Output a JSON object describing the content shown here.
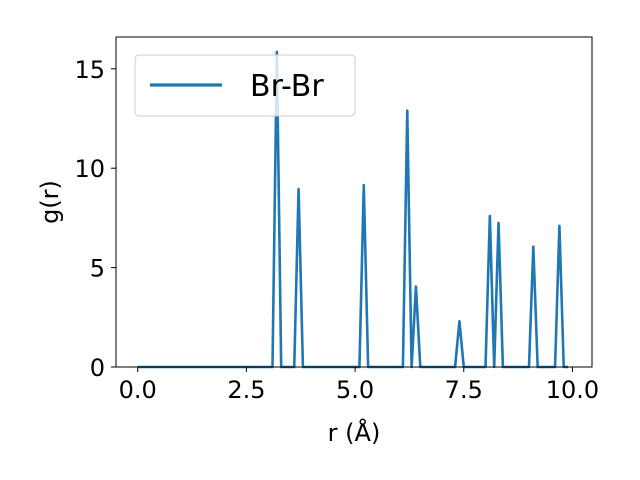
{
  "chart_data": {
    "type": "line",
    "title": "",
    "xlabel": "r (Å)",
    "ylabel": "g(r)",
    "xlim": [
      -0.5,
      10.45
    ],
    "ylim": [
      0,
      16.6
    ],
    "xticks": [
      0.0,
      2.5,
      5.0,
      7.5,
      10.0
    ],
    "xtick_labels": [
      "0.0",
      "2.5",
      "5.0",
      "7.5",
      "10.0"
    ],
    "yticks": [
      0,
      5,
      10,
      15
    ],
    "ytick_labels": [
      "0",
      "5",
      "10",
      "15"
    ],
    "grid": false,
    "legend_position": "top-left",
    "series": [
      {
        "name": "Br-Br",
        "color": "#1f77b4",
        "points": [
          [
            0.0,
            0
          ],
          [
            3.1,
            0
          ],
          [
            3.2,
            15.85
          ],
          [
            3.3,
            0
          ],
          [
            3.6,
            0
          ],
          [
            3.7,
            8.95
          ],
          [
            3.8,
            0
          ],
          [
            5.1,
            0
          ],
          [
            5.2,
            9.15
          ],
          [
            5.3,
            0
          ],
          [
            6.1,
            0
          ],
          [
            6.2,
            12.9
          ],
          [
            6.3,
            0
          ],
          [
            6.4,
            4.05
          ],
          [
            6.5,
            0
          ],
          [
            7.3,
            0
          ],
          [
            7.4,
            2.3
          ],
          [
            7.5,
            0
          ],
          [
            8.0,
            0
          ],
          [
            8.1,
            7.6
          ],
          [
            8.2,
            0
          ],
          [
            8.3,
            7.25
          ],
          [
            8.4,
            0
          ],
          [
            9.0,
            0
          ],
          [
            9.1,
            6.05
          ],
          [
            9.2,
            0
          ],
          [
            9.6,
            0
          ],
          [
            9.7,
            7.1
          ],
          [
            9.8,
            0
          ],
          [
            9.9,
            0
          ]
        ]
      }
    ]
  }
}
